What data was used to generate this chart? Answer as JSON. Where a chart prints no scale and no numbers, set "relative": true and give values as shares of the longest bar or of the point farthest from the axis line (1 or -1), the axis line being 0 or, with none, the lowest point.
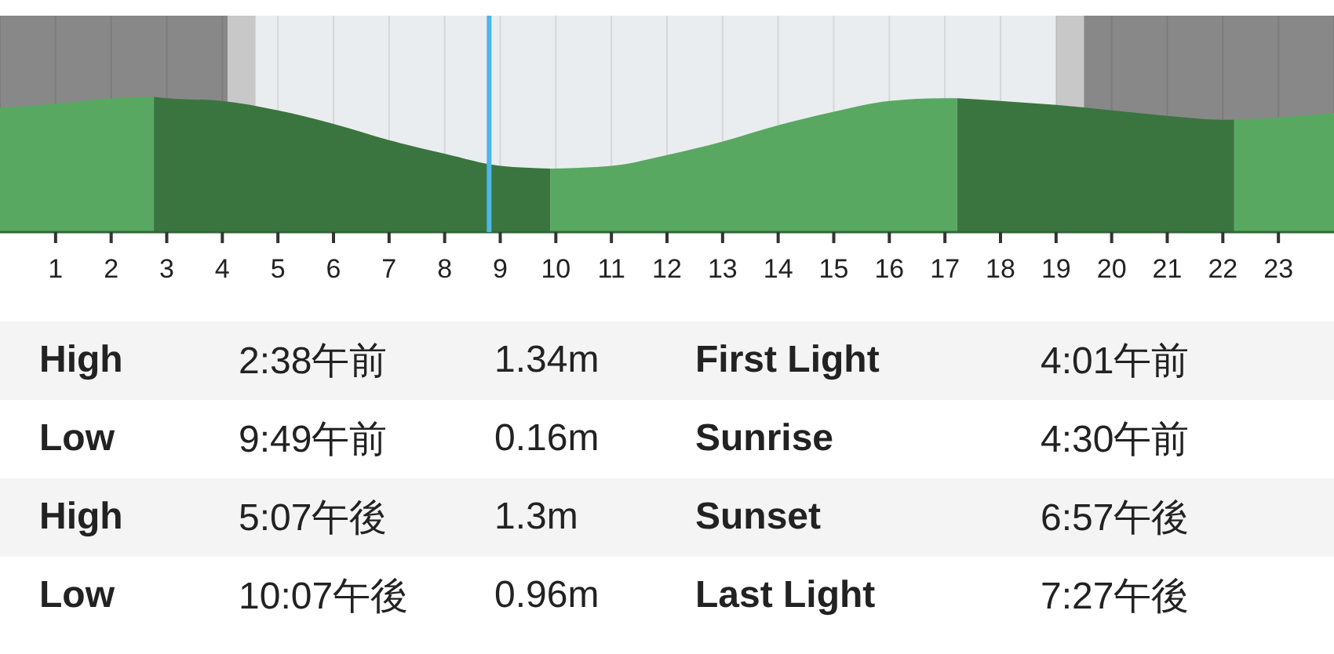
{
  "chart_data": [
    {
      "type": "area",
      "relative": true,
      "x": [
        0,
        1,
        2,
        2.77,
        3,
        4,
        5,
        6,
        7,
        8,
        9,
        9.9,
        11,
        12,
        13,
        14,
        15,
        16,
        17,
        17.22,
        18,
        19,
        20,
        21,
        22,
        22.2,
        23,
        24
      ],
      "series": [
        {
          "color": "#58a862",
          "values": [
            0.92,
            0.95,
            0.99,
            1.0,
            null,
            null,
            null,
            null,
            null,
            null,
            null,
            0.47,
            0.49,
            0.57,
            0.67,
            0.79,
            0.89,
            0.97,
            0.99,
            0.99,
            null,
            null,
            null,
            null,
            null,
            0.83,
            0.85,
            0.88
          ]
        },
        {
          "color": "#3a753f",
          "values": [
            null,
            null,
            null,
            1.0,
            0.99,
            0.97,
            0.9,
            0.8,
            0.68,
            0.58,
            0.49,
            0.47,
            null,
            null,
            null,
            null,
            null,
            null,
            null,
            0.99,
            0.97,
            0.94,
            0.9,
            0.86,
            0.83,
            0.83,
            null,
            null
          ]
        }
      ],
      "xlim": [
        0,
        24
      ],
      "xticks": [
        1,
        2,
        3,
        4,
        5,
        6,
        7,
        8,
        9,
        10,
        11,
        12,
        13,
        14,
        15,
        16,
        17,
        18,
        19,
        20,
        21,
        22,
        23
      ],
      "grid": "x",
      "bands": [
        {
          "axis": "x",
          "from": 0,
          "to": 4.1,
          "color": "#888888"
        },
        {
          "axis": "x",
          "from": 4.1,
          "to": 4.6,
          "color": "#c8c8c8"
        },
        {
          "axis": "x",
          "from": 4.6,
          "to": 19,
          "color": "#eaedef"
        },
        {
          "axis": "x",
          "from": 19,
          "to": 19.5,
          "color": "#c8c8c8"
        },
        {
          "axis": "x",
          "from": 19.5,
          "to": 24,
          "color": "#888888"
        }
      ],
      "ref_lines": [
        {
          "axis": "x",
          "value": 8.8,
          "color": "#4db6ea"
        }
      ]
    },
    {
      "type": "other",
      "annotations": [
        "High",
        "2:38午前",
        "1.34m",
        "First Light",
        "4:01午前",
        "Low",
        "9:49午前",
        "0.16m",
        "Sunrise",
        "4:30午前",
        "High",
        "5:07午後",
        "1.3m",
        "Sunset",
        "6:57午後",
        "Low",
        "10:07午後",
        "0.96m",
        "Last Light",
        "7:27午後"
      ]
    }
  ]
}
